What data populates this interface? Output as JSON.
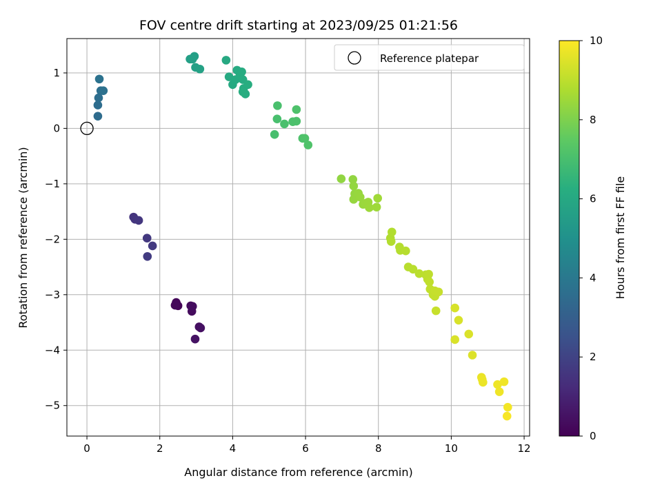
{
  "chart_data": {
    "type": "scatter",
    "title": "FOV centre drift starting at 2023/09/25 01:21:56",
    "xlabel": "Angular distance from reference (arcmin)",
    "ylabel": "Rotation from reference (arcmin)",
    "xlim": [
      -0.55,
      12.15
    ],
    "ylim": [
      -5.55,
      1.62
    ],
    "xticks": [
      0,
      2,
      4,
      6,
      8,
      10,
      12
    ],
    "yticks": [
      -5,
      -4,
      -3,
      -2,
      -1,
      0,
      1
    ],
    "grid": true,
    "legend": {
      "placement": "top-right",
      "entries": [
        "Reference platepar"
      ]
    },
    "reference_point": {
      "x": 0,
      "y": 0,
      "label": "Reference platepar"
    },
    "colorbar": {
      "label": "Hours from first FF file",
      "range": [
        0,
        10
      ],
      "ticks": [
        0,
        2,
        4,
        6,
        8,
        10
      ],
      "colormap": "viridis"
    },
    "points": [
      {
        "x": 2.5,
        "y": -3.2,
        "c": 0.1
      },
      {
        "x": 2.45,
        "y": -3.14,
        "c": 0.15
      },
      {
        "x": 2.42,
        "y": -3.19,
        "c": 0.2
      },
      {
        "x": 2.85,
        "y": -3.2,
        "c": 0.25
      },
      {
        "x": 2.88,
        "y": -3.3,
        "c": 0.3
      },
      {
        "x": 2.9,
        "y": -3.21,
        "c": 0.35
      },
      {
        "x": 3.08,
        "y": -3.58,
        "c": 0.4
      },
      {
        "x": 3.12,
        "y": -3.6,
        "c": 0.45
      },
      {
        "x": 2.97,
        "y": -3.8,
        "c": 0.5
      },
      {
        "x": 1.28,
        "y": -1.6,
        "c": 1.5
      },
      {
        "x": 1.32,
        "y": -1.64,
        "c": 1.55
      },
      {
        "x": 1.42,
        "y": -1.66,
        "c": 1.6
      },
      {
        "x": 1.65,
        "y": -1.98,
        "c": 1.65
      },
      {
        "x": 1.8,
        "y": -2.12,
        "c": 1.7
      },
      {
        "x": 1.66,
        "y": -2.31,
        "c": 1.75
      },
      {
        "x": 0.3,
        "y": 0.22,
        "c": 3.5
      },
      {
        "x": 0.3,
        "y": 0.42,
        "c": 3.55
      },
      {
        "x": 0.32,
        "y": 0.55,
        "c": 3.6
      },
      {
        "x": 0.38,
        "y": 0.68,
        "c": 3.65
      },
      {
        "x": 0.45,
        "y": 0.68,
        "c": 3.7
      },
      {
        "x": 0.34,
        "y": 0.89,
        "c": 3.75
      },
      {
        "x": 2.83,
        "y": 1.25,
        "c": 5.6
      },
      {
        "x": 2.95,
        "y": 1.3,
        "c": 5.62
      },
      {
        "x": 2.9,
        "y": 1.25,
        "c": 5.64
      },
      {
        "x": 2.98,
        "y": 1.1,
        "c": 5.66
      },
      {
        "x": 3.1,
        "y": 1.07,
        "c": 5.68
      },
      {
        "x": 3.82,
        "y": 1.23,
        "c": 6.0
      },
      {
        "x": 3.9,
        "y": 0.93,
        "c": 6.02
      },
      {
        "x": 4.0,
        "y": 0.79,
        "c": 6.04
      },
      {
        "x": 4.08,
        "y": 0.88,
        "c": 6.06
      },
      {
        "x": 4.12,
        "y": 1.05,
        "c": 6.08
      },
      {
        "x": 4.2,
        "y": 0.95,
        "c": 6.1
      },
      {
        "x": 4.25,
        "y": 1.02,
        "c": 6.12
      },
      {
        "x": 4.28,
        "y": 0.88,
        "c": 6.14
      },
      {
        "x": 4.3,
        "y": 0.72,
        "c": 6.16
      },
      {
        "x": 4.35,
        "y": 0.62,
        "c": 6.18
      },
      {
        "x": 4.42,
        "y": 0.79,
        "c": 6.2
      },
      {
        "x": 4.28,
        "y": 0.66,
        "c": 6.22
      },
      {
        "x": 5.15,
        "y": -0.11,
        "c": 7.0
      },
      {
        "x": 5.22,
        "y": 0.17,
        "c": 7.02
      },
      {
        "x": 5.23,
        "y": 0.41,
        "c": 7.04
      },
      {
        "x": 5.42,
        "y": 0.08,
        "c": 7.06
      },
      {
        "x": 5.65,
        "y": 0.12,
        "c": 7.08
      },
      {
        "x": 5.75,
        "y": 0.13,
        "c": 7.1
      },
      {
        "x": 5.75,
        "y": 0.34,
        "c": 7.12
      },
      {
        "x": 5.92,
        "y": -0.18,
        "c": 7.14
      },
      {
        "x": 5.98,
        "y": -0.18,
        "c": 7.16
      },
      {
        "x": 6.07,
        "y": -0.3,
        "c": 7.18
      },
      {
        "x": 6.98,
        "y": -0.91,
        "c": 8.3
      },
      {
        "x": 7.3,
        "y": -0.92,
        "c": 8.32
      },
      {
        "x": 7.32,
        "y": -1.04,
        "c": 8.34
      },
      {
        "x": 7.35,
        "y": -1.18,
        "c": 8.36
      },
      {
        "x": 7.32,
        "y": -1.28,
        "c": 8.38
      },
      {
        "x": 7.45,
        "y": -1.17,
        "c": 8.4
      },
      {
        "x": 7.5,
        "y": -1.24,
        "c": 8.42
      },
      {
        "x": 7.58,
        "y": -1.37,
        "c": 8.44
      },
      {
        "x": 7.65,
        "y": -1.35,
        "c": 8.46
      },
      {
        "x": 7.72,
        "y": -1.33,
        "c": 8.48
      },
      {
        "x": 7.75,
        "y": -1.43,
        "c": 8.5
      },
      {
        "x": 7.95,
        "y": -1.42,
        "c": 8.52
      },
      {
        "x": 7.98,
        "y": -1.26,
        "c": 8.54
      },
      {
        "x": 8.33,
        "y": -1.98,
        "c": 8.8
      },
      {
        "x": 8.37,
        "y": -1.87,
        "c": 8.82
      },
      {
        "x": 8.35,
        "y": -2.04,
        "c": 8.84
      },
      {
        "x": 8.58,
        "y": -2.14,
        "c": 8.86
      },
      {
        "x": 8.6,
        "y": -2.2,
        "c": 8.88
      },
      {
        "x": 8.75,
        "y": -2.21,
        "c": 8.9
      },
      {
        "x": 8.82,
        "y": -2.5,
        "c": 8.92
      },
      {
        "x": 8.95,
        "y": -2.54,
        "c": 8.94
      },
      {
        "x": 9.12,
        "y": -2.62,
        "c": 8.96
      },
      {
        "x": 9.3,
        "y": -2.64,
        "c": 8.98
      },
      {
        "x": 9.35,
        "y": -2.72,
        "c": 9.0
      },
      {
        "x": 9.38,
        "y": -2.63,
        "c": 9.02
      },
      {
        "x": 9.4,
        "y": -2.77,
        "c": 9.04
      },
      {
        "x": 9.42,
        "y": -2.9,
        "c": 9.06
      },
      {
        "x": 9.5,
        "y": -3.0,
        "c": 9.08
      },
      {
        "x": 9.55,
        "y": -3.03,
        "c": 9.1
      },
      {
        "x": 9.55,
        "y": -2.93,
        "c": 9.12
      },
      {
        "x": 9.65,
        "y": -2.95,
        "c": 9.14
      },
      {
        "x": 9.58,
        "y": -3.29,
        "c": 9.16
      },
      {
        "x": 10.1,
        "y": -3.24,
        "c": 9.4
      },
      {
        "x": 10.2,
        "y": -3.46,
        "c": 9.42
      },
      {
        "x": 10.1,
        "y": -3.81,
        "c": 9.44
      },
      {
        "x": 10.48,
        "y": -3.71,
        "c": 9.46
      },
      {
        "x": 10.58,
        "y": -4.09,
        "c": 9.48
      },
      {
        "x": 10.83,
        "y": -4.49,
        "c": 9.7
      },
      {
        "x": 10.87,
        "y": -4.58,
        "c": 9.72
      },
      {
        "x": 10.85,
        "y": -4.53,
        "c": 9.74
      },
      {
        "x": 11.27,
        "y": -4.62,
        "c": 9.76
      },
      {
        "x": 11.32,
        "y": -4.75,
        "c": 9.78
      },
      {
        "x": 11.45,
        "y": -4.57,
        "c": 9.8
      },
      {
        "x": 11.55,
        "y": -5.03,
        "c": 9.85
      },
      {
        "x": 11.53,
        "y": -5.19,
        "c": 9.9
      }
    ]
  }
}
